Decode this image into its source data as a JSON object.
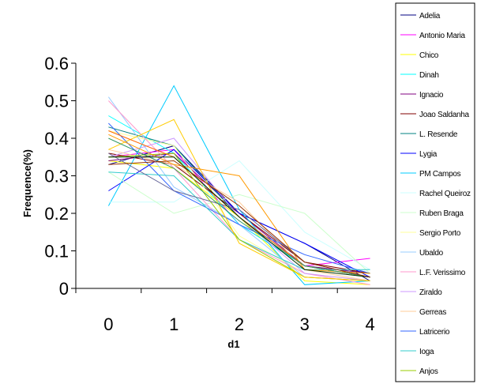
{
  "chart_data": {
    "type": "line",
    "x": [
      0,
      1,
      2,
      3,
      4
    ],
    "xlabel": "d1",
    "ylabel": "Frequence(%)",
    "ylim": [
      0,
      0.6
    ],
    "yticks": [
      "0",
      "0.1",
      "0.2",
      "0.3",
      "0.4",
      "0.5",
      "0.6"
    ],
    "xticks": [
      "0",
      "1",
      "2",
      "3",
      "4"
    ],
    "grid": false,
    "legend_position": "right",
    "series": [
      {
        "name": "Adelia",
        "color": "#000080",
        "values": [
          0.33,
          0.38,
          0.2,
          0.12,
          0.02
        ]
      },
      {
        "name": "Antonio Maria",
        "color": "#FF00FF",
        "values": [
          0.35,
          0.37,
          0.17,
          0.06,
          0.08
        ]
      },
      {
        "name": "Chico",
        "color": "#FFFF00",
        "values": [
          0.34,
          0.32,
          0.19,
          0.02,
          0.01
        ]
      },
      {
        "name": "Dinah",
        "color": "#00FFFF",
        "values": [
          0.46,
          0.36,
          0.17,
          0.06,
          0.04
        ]
      },
      {
        "name": "Ignacio",
        "color": "#800080",
        "values": [
          0.34,
          0.36,
          0.2,
          0.06,
          0.04
        ]
      },
      {
        "name": "Joao Saldanha",
        "color": "#800000",
        "values": [
          0.36,
          0.33,
          0.2,
          0.07,
          0.04
        ]
      },
      {
        "name": "L. Resende",
        "color": "#008080",
        "values": [
          0.43,
          0.38,
          0.19,
          0.06,
          0.03
        ]
      },
      {
        "name": "Lygia",
        "color": "#0000FF",
        "values": [
          0.26,
          0.37,
          0.2,
          0.12,
          0.03
        ]
      },
      {
        "name": "PM Campos",
        "color": "#00CCFF",
        "values": [
          0.22,
          0.54,
          0.21,
          0.01,
          0.02
        ]
      },
      {
        "name": "Rachel Queiroz",
        "color": "#CCFFFF",
        "values": [
          0.23,
          0.23,
          0.34,
          0.15,
          0.05
        ]
      },
      {
        "name": "Ruben Braga",
        "color": "#CCFFCC",
        "values": [
          0.31,
          0.2,
          0.25,
          0.2,
          0.04
        ]
      },
      {
        "name": "Sergio Porto",
        "color": "#FFFF99",
        "values": [
          0.42,
          0.38,
          0.14,
          0.04,
          0.02
        ]
      },
      {
        "name": "Ubaldo",
        "color": "#99CCFF",
        "values": [
          0.51,
          0.27,
          0.17,
          0.03,
          0.02
        ]
      },
      {
        "name": "L.F. Verissimo",
        "color": "#FF99CC",
        "values": [
          0.5,
          0.32,
          0.13,
          0.04,
          0.01
        ]
      },
      {
        "name": "Ziraldo",
        "color": "#CC99FF",
        "values": [
          0.35,
          0.4,
          0.19,
          0.04,
          0.02
        ]
      },
      {
        "name": "Gerreas",
        "color": "#FFCC99",
        "values": [
          0.37,
          0.33,
          0.23,
          0.05,
          0.02
        ]
      },
      {
        "name": "Latricerio",
        "color": "#3366FF",
        "values": [
          0.44,
          0.26,
          0.17,
          0.09,
          0.04
        ]
      },
      {
        "name": "Ioga",
        "color": "#33CCCC",
        "values": [
          0.31,
          0.3,
          0.13,
          0.05,
          0.05
        ]
      },
      {
        "name": "Anjos",
        "color": "#99CC00",
        "values": [
          0.35,
          0.36,
          0.13,
          0.03,
          0.02
        ]
      },
      {
        "name": "",
        "color": "#FFCC00",
        "values": [
          0.37,
          0.45,
          0.12,
          0.03,
          0.02
        ]
      },
      {
        "name": "",
        "color": "#FF9900",
        "values": [
          0.41,
          0.33,
          0.3,
          0.05,
          0.04
        ]
      },
      {
        "name": "",
        "color": "#FF6600",
        "values": [
          0.42,
          0.35,
          0.19,
          0.06,
          0.03
        ]
      },
      {
        "name": "",
        "color": "#666699",
        "values": [
          0.36,
          0.26,
          0.21,
          0.07,
          0.03
        ]
      },
      {
        "name": "",
        "color": "#339966",
        "values": [
          0.4,
          0.32,
          0.18,
          0.06,
          0.03
        ]
      },
      {
        "name": "",
        "color": "#003300",
        "values": [
          0.35,
          0.35,
          0.19,
          0.05,
          0.03
        ]
      },
      {
        "name": "",
        "color": "#993300",
        "values": [
          0.33,
          0.34,
          0.22,
          0.07,
          0.03
        ]
      }
    ]
  }
}
